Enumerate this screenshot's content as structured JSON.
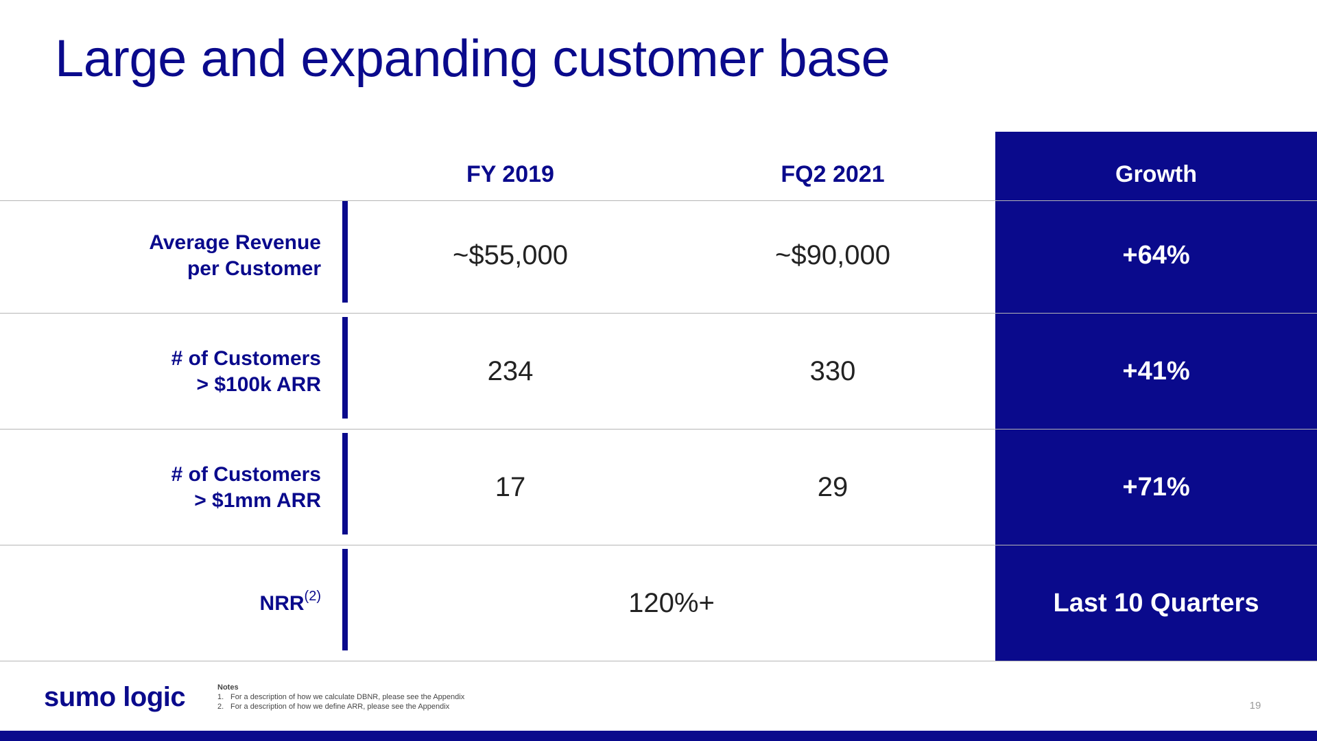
{
  "title": "Large and expanding customer base",
  "table": {
    "headers": {
      "col1": "FY 2019",
      "col2": "FQ2 2021",
      "growth": "Growth"
    },
    "rows": [
      {
        "label_line1": "Average Revenue",
        "label_line2": "per Customer",
        "fy2019": "~$55,000",
        "fq2_2021": "~$90,000",
        "growth": "+64%"
      },
      {
        "label_line1": "# of Customers",
        "label_line2": "> $100k ARR",
        "fy2019": "234",
        "fq2_2021": "330",
        "growth": "+41%"
      },
      {
        "label_line1": "# of Customers",
        "label_line2": "> $1mm ARR",
        "fy2019": "17",
        "fq2_2021": "29",
        "growth": "+71%"
      },
      {
        "label": "NRR",
        "label_sup": "(2)",
        "value": "120%+",
        "growth": "Last 10 Quarters"
      }
    ]
  },
  "footer": {
    "logo_text": "sumo logic",
    "notes_title": "Notes",
    "notes": [
      {
        "num": "1.",
        "text": "For a description of how we calculate DBNR, please see the Appendix"
      },
      {
        "num": "2.",
        "text": "For a description of how we define ARR, please see the Appendix"
      }
    ],
    "page_number": "19"
  },
  "colors": {
    "brand_navy": "#0a0a8c",
    "rule_gray": "#b5b5b5",
    "value_text": "#222222"
  }
}
